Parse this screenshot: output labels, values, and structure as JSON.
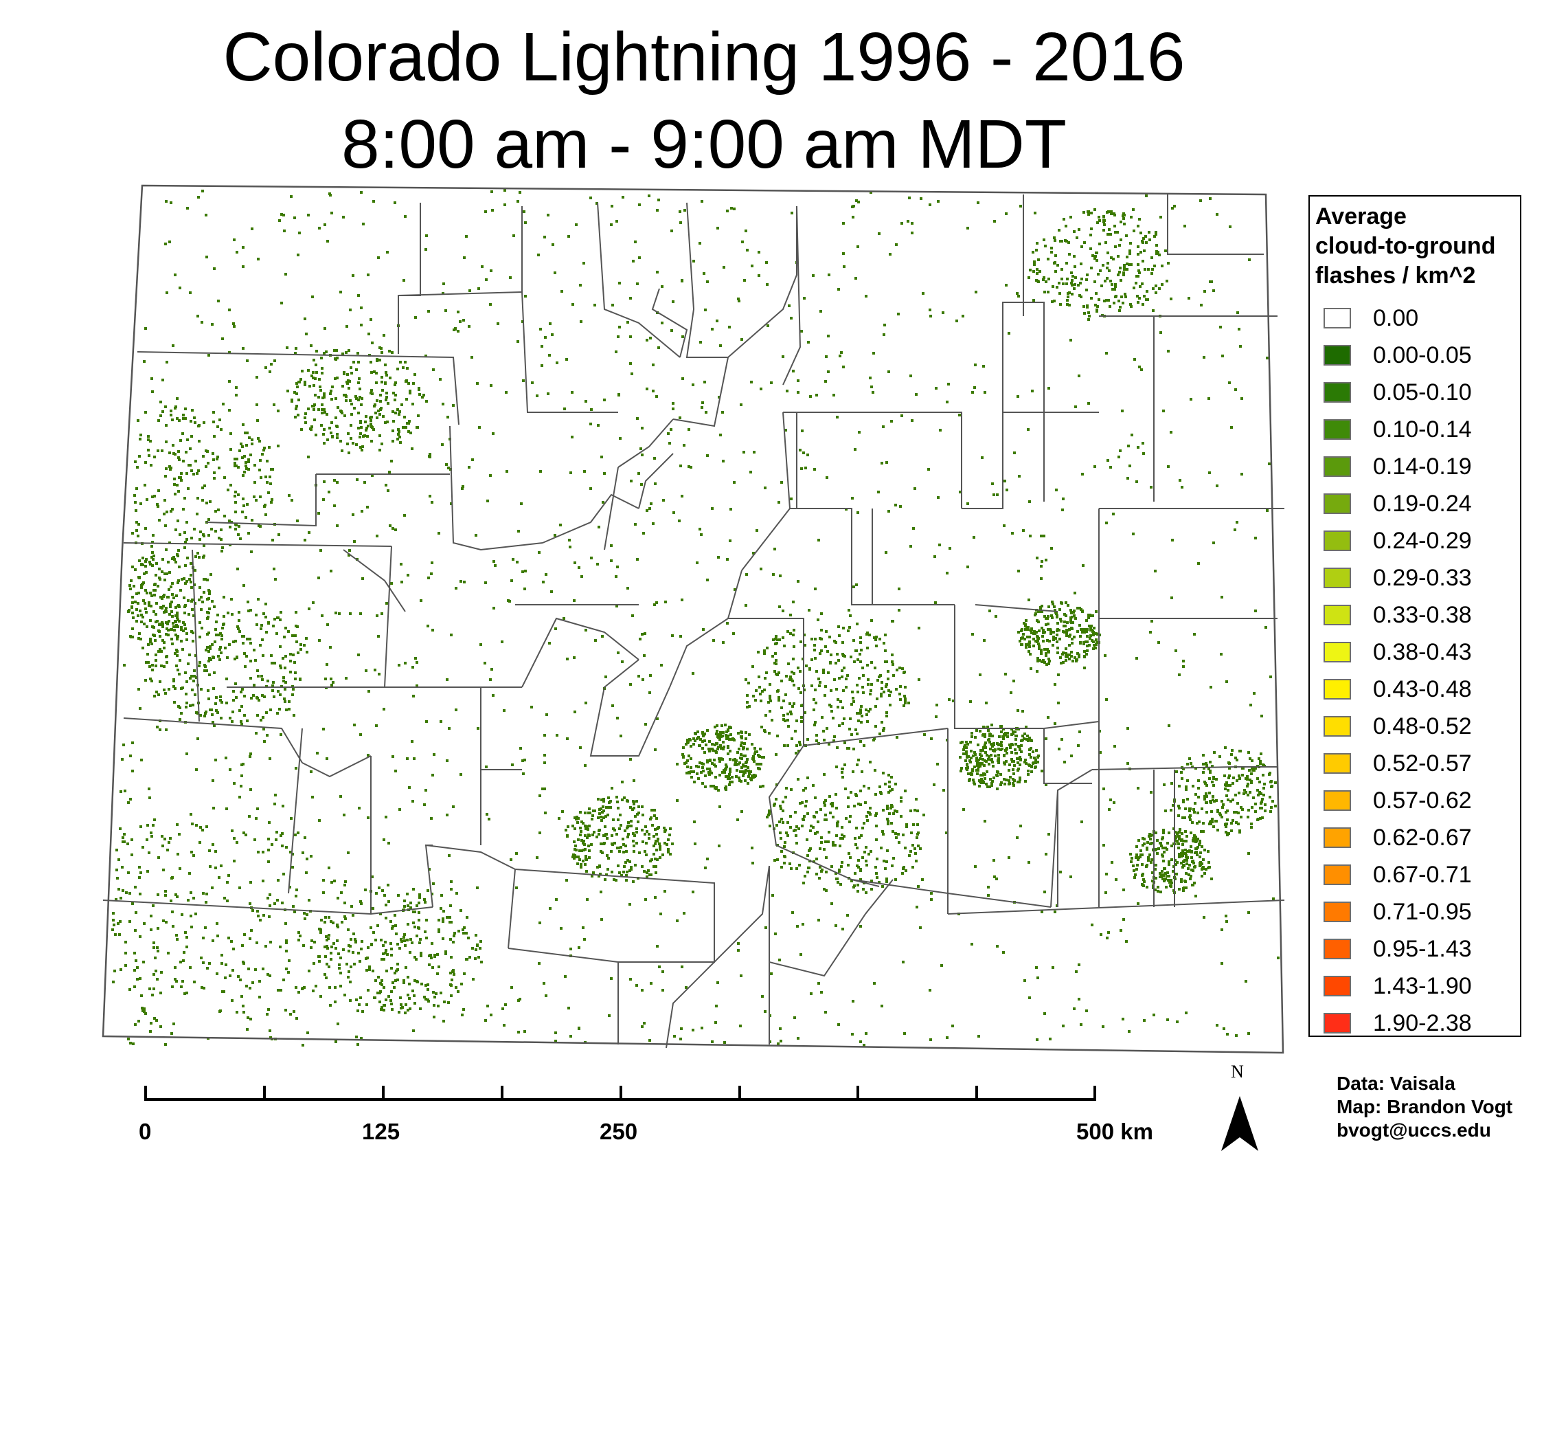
{
  "title": {
    "line1": "Colorado Lightning 1996 - 2016",
    "line2": "8:00 am - 9:00 am MDT"
  },
  "legend": {
    "title_lines": [
      "Average",
      "cloud-to-ground",
      "flashes / km^2"
    ],
    "classes": [
      {
        "label": "0.00",
        "color": "#ffffff"
      },
      {
        "label": "0.00-0.05",
        "color": "#1e6b00"
      },
      {
        "label": "0.05-0.10",
        "color": "#2b7a05"
      },
      {
        "label": "0.10-0.14",
        "color": "#3f8a08"
      },
      {
        "label": "0.14-0.19",
        "color": "#5b9a0c"
      },
      {
        "label": "0.19-0.24",
        "color": "#76aa0e"
      },
      {
        "label": "0.24-0.29",
        "color": "#94bd10"
      },
      {
        "label": "0.29-0.33",
        "color": "#b0cf12"
      },
      {
        "label": "0.33-0.38",
        "color": "#cfe313"
      },
      {
        "label": "0.38-0.43",
        "color": "#eef514"
      },
      {
        "label": "0.43-0.48",
        "color": "#fff000"
      },
      {
        "label": "0.48-0.52",
        "color": "#ffde00"
      },
      {
        "label": "0.52-0.57",
        "color": "#ffcb00"
      },
      {
        "label": "0.57-0.62",
        "color": "#ffb700"
      },
      {
        "label": "0.62-0.67",
        "color": "#ffa300"
      },
      {
        "label": "0.67-0.71",
        "color": "#ff8f00"
      },
      {
        "label": "0.71-0.95",
        "color": "#ff7a00"
      },
      {
        "label": "0.95-1.43",
        "color": "#ff6000"
      },
      {
        "label": "1.43-1.90",
        "color": "#ff4800"
      },
      {
        "label": "1.90-2.38",
        "color": "#ff2e17"
      }
    ]
  },
  "scale_bar": {
    "labels": [
      "0",
      "125",
      "250",
      "500 km"
    ]
  },
  "north_arrow": {
    "label": "N"
  },
  "credits": {
    "data": "Data: Vaisala",
    "map": "Map: Brandon Vogt",
    "email": "bvogt@uccs.edu"
  },
  "map": {
    "region": "Colorado",
    "boundary_color": "#555555",
    "strike_color": "#3c7a00"
  }
}
